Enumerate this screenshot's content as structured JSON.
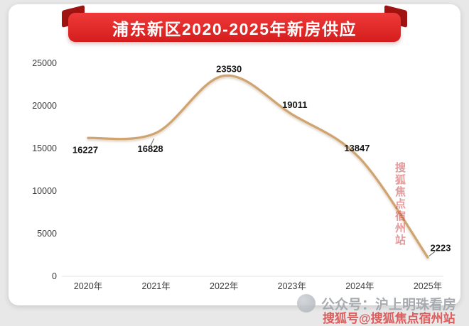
{
  "page": {
    "background": "#e8e8e8",
    "card_background": "#ffffff"
  },
  "banner": {
    "title": "浦东新区2020-2025年新房供应",
    "color": "#d51d1d"
  },
  "chart_data": {
    "type": "line",
    "title": "浦东新区2020-2025年新房供应",
    "categories": [
      "2020年",
      "2021年",
      "2022年",
      "2023年",
      "2024年",
      "2025年"
    ],
    "values": [
      16227,
      16828,
      23530,
      19011,
      13847,
      2223
    ],
    "point_labels": [
      "16227",
      "16828",
      "23530",
      "19011",
      "13847",
      "2223"
    ],
    "xlabel": "",
    "ylabel": "",
    "ylim": [
      0,
      25000
    ],
    "yticks": [
      0,
      5000,
      10000,
      15000,
      20000,
      25000
    ],
    "grid": false,
    "legend": "none",
    "line_color": "#d0a470",
    "label_color": "#161616",
    "axis_text_color": "#3c3c3c"
  },
  "watermarks": {
    "vertical": "搜狐焦点宿州站",
    "footer_gray": "公众号：沪上明珠看房",
    "footer_red": "搜狐号@搜狐焦点宿州站"
  }
}
